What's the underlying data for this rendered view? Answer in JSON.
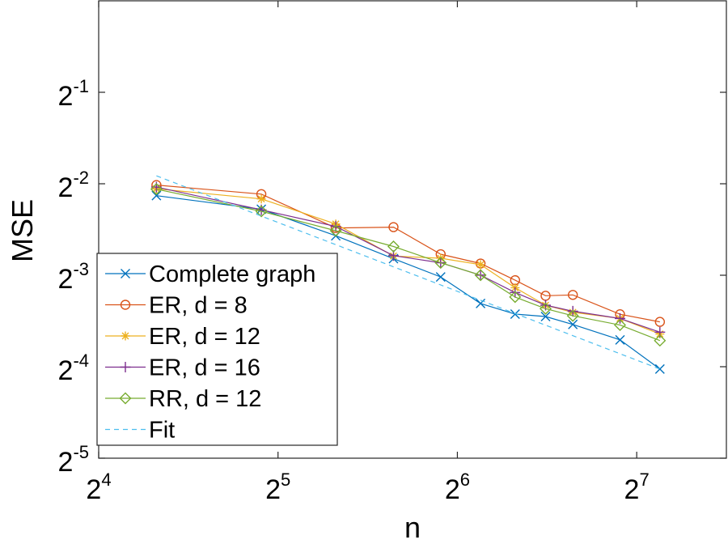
{
  "chart_data": {
    "type": "line",
    "log_scale": {
      "x": 2,
      "y": 2
    },
    "xlabel": "n",
    "ylabel": "MSE",
    "xlim_exp": [
      4,
      7.5
    ],
    "ylim_exp": [
      -5,
      0
    ],
    "xticks": [
      {
        "base": "2",
        "exp": "4"
      },
      {
        "base": "2",
        "exp": "5"
      },
      {
        "base": "2",
        "exp": "6"
      },
      {
        "base": "2",
        "exp": "7"
      }
    ],
    "xtick_exps": [
      4,
      5,
      6,
      7
    ],
    "yticks": [
      {
        "base": "2",
        "exp": "-1"
      },
      {
        "base": "2",
        "exp": "-2"
      },
      {
        "base": "2",
        "exp": "-3"
      },
      {
        "base": "2",
        "exp": "-4"
      },
      {
        "base": "2",
        "exp": "-5"
      }
    ],
    "ytick_exps": [
      -1,
      -2,
      -3,
      -4,
      -5
    ],
    "x": [
      20,
      30,
      40,
      50,
      60,
      70,
      80,
      90,
      100,
      120,
      140
    ],
    "legend_location": "bottom-left",
    "series": [
      {
        "name": "Complete graph",
        "color": "#0072BD",
        "marker": "x",
        "dashed": false,
        "values": [
          0.2285,
          0.2061,
          0.1686,
          0.1417,
          0.1234,
          0.1009,
          0.0931,
          0.0914,
          0.0861,
          0.0766,
          0.0614
        ]
      },
      {
        "name": "ER, d = 8",
        "color": "#D95319",
        "marker": "o",
        "dashed": false,
        "values": [
          0.2476,
          0.2311,
          0.1789,
          0.18,
          0.1466,
          0.1366,
          0.1204,
          0.107,
          0.1077,
          0.093,
          0.0878
        ]
      },
      {
        "name": "ER, d = 12",
        "color": "#EDB120",
        "marker": "*",
        "dashed": false,
        "values": [
          0.2407,
          0.2229,
          0.1843,
          0.1446,
          0.1422,
          0.1355,
          0.1137,
          0.0996,
          0.0944,
          0.0901,
          0.0801
        ]
      },
      {
        "name": "ER, d = 16",
        "color": "#7E2F8E",
        "marker": "+",
        "dashed": false,
        "values": [
          0.2438,
          0.2052,
          0.181,
          0.145,
          0.1374,
          0.1251,
          0.1097,
          0.0996,
          0.0952,
          0.0901,
          0.0812
        ]
      },
      {
        "name": "RR, d = 12",
        "color": "#77AC30",
        "marker": "diamond",
        "dashed": false,
        "values": [
          0.24,
          0.2029,
          0.1752,
          0.1554,
          0.1374,
          0.1251,
          0.106,
          0.097,
          0.0919,
          0.0857,
          0.0762
        ]
      },
      {
        "name": "Fit",
        "color": "#4DBEEE",
        "marker": "none",
        "dashed": true,
        "x": [
          20,
          140
        ],
        "values": [
          0.2655,
          0.0614
        ]
      }
    ]
  }
}
